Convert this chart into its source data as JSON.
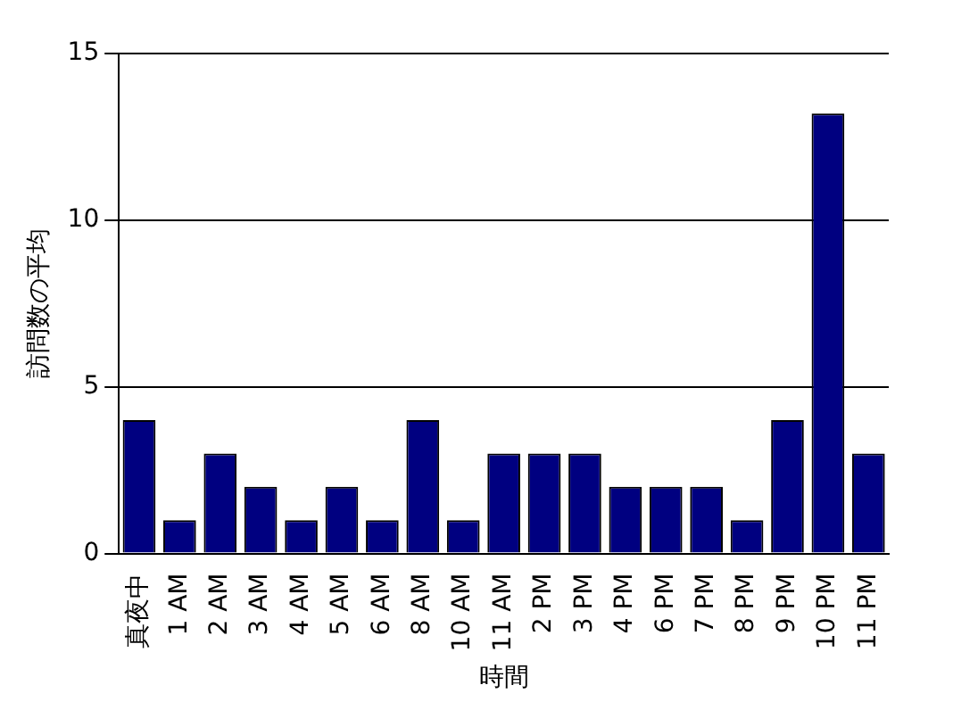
{
  "chart_data": {
    "type": "bar",
    "xlabel": "時間",
    "ylabel": "訪問数の平均",
    "categories": [
      "真夜中",
      "1 AM",
      "2 AM",
      "3 AM",
      "4 AM",
      "5 AM",
      "6 AM",
      "8 AM",
      "10 AM",
      "11 AM",
      "2 PM",
      "3 PM",
      "4 PM",
      "6 PM",
      "7 PM",
      "8 PM",
      "9 PM",
      "10 PM",
      "11 PM"
    ],
    "values": [
      4,
      1,
      3,
      2,
      1,
      2,
      1,
      4,
      1,
      3,
      3,
      3,
      2,
      2,
      2,
      1,
      4,
      13.2,
      3
    ],
    "color": "#000080",
    "ylim": [
      0,
      15
    ],
    "yticks": [
      0,
      5,
      10,
      15
    ],
    "grid": "y",
    "legend": false
  }
}
